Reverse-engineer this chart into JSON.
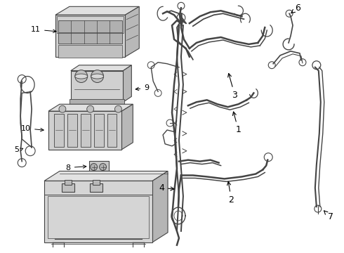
{
  "background_color": "#ffffff",
  "line_color": "#444444",
  "fill_color": "#d8d8d8",
  "label_color": "#000000",
  "label_fontsize": 8,
  "arrow_fontsize": 7,
  "figsize": [
    4.9,
    3.6
  ],
  "dpi": 100,
  "border_color": "#cccccc"
}
